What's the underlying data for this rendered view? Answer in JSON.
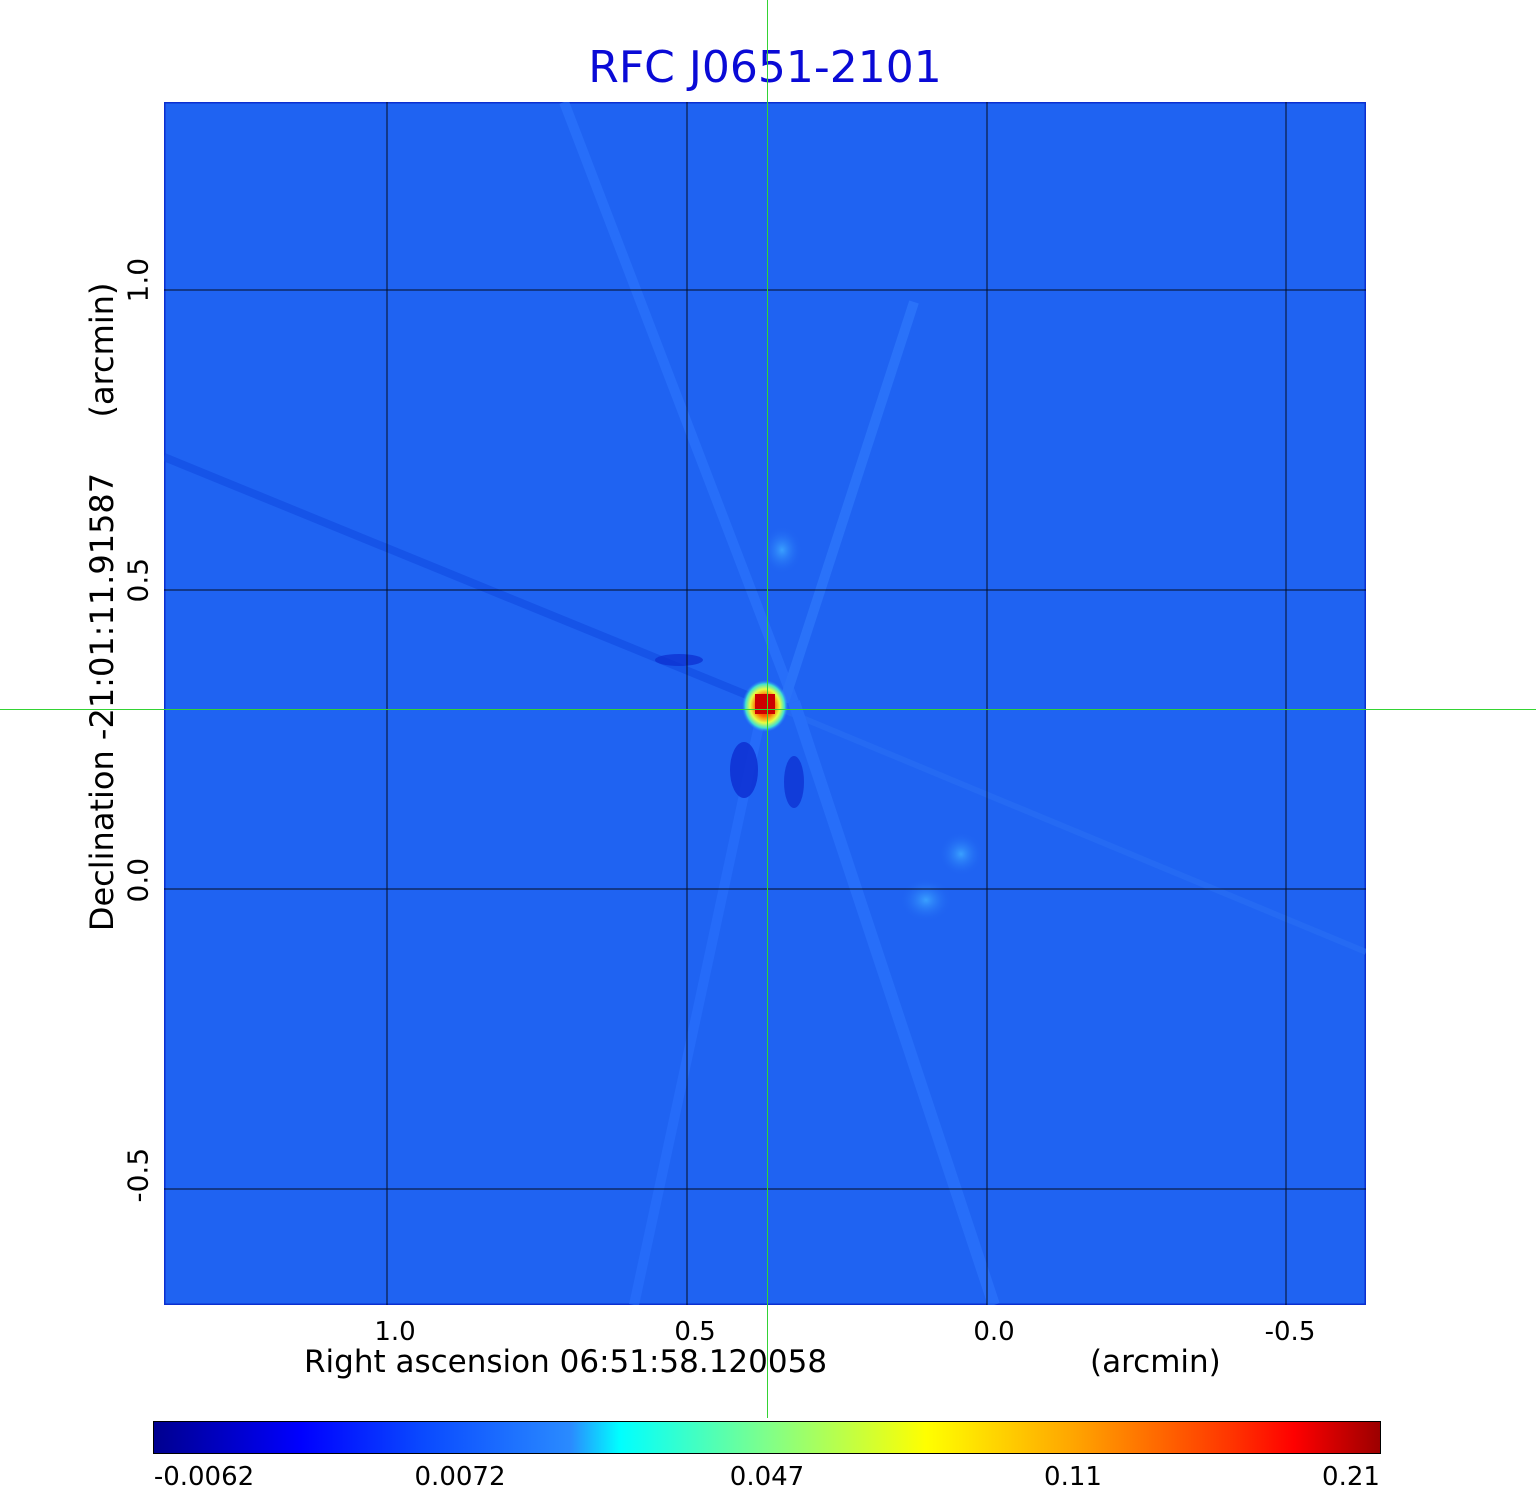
{
  "title": "RFC J0651-2101",
  "x_axis": {
    "label": "Right ascension  06:51:58.120058",
    "unit": "(arcmin)",
    "ticks": [
      "1.0",
      "0.5",
      "0.0",
      "-0.5"
    ]
  },
  "y_axis": {
    "label": "Declination  -21:01:11.91587",
    "unit": "(arcmin)",
    "ticks": [
      "1.0",
      "0.5",
      "0.0",
      "-0.5"
    ]
  },
  "colorbar": {
    "ticks": [
      "-0.0062",
      "0.0072",
      "0.047",
      "0.11",
      "0.21"
    ],
    "colormap": "jet"
  },
  "colors": {
    "title": "#0a0ad6",
    "background_map": "#1f63f2",
    "crosshair": "#34d334",
    "grid": "#000000"
  }
}
